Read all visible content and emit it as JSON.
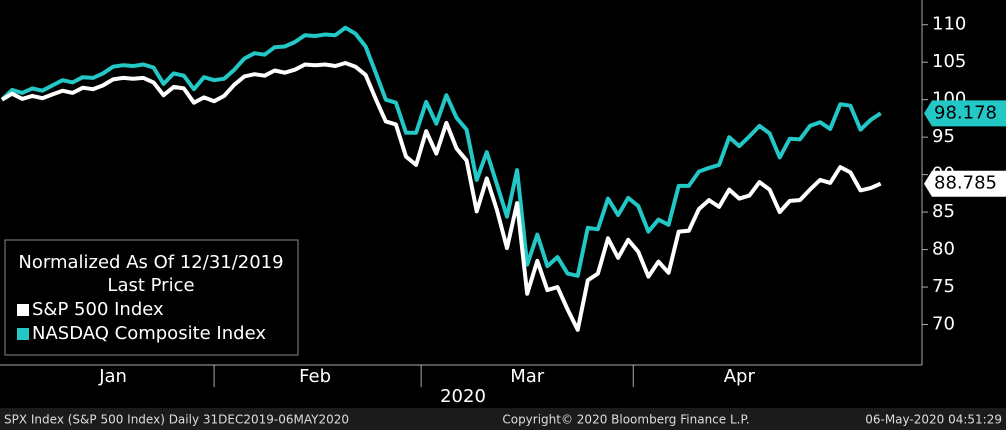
{
  "chart_data": {
    "type": "line",
    "legend_title": "Normalized As Of 12/31/2019",
    "legend_subtitle": "Last Price",
    "xlabel": "2020",
    "categories": [
      null,
      null,
      null,
      null,
      null,
      null,
      null,
      null,
      null,
      null,
      null,
      "Jan",
      null,
      null,
      null,
      null,
      null,
      null,
      null,
      null,
      null,
      null,
      null,
      null,
      null,
      null,
      null,
      null,
      null,
      null,
      null,
      "Feb",
      null,
      null,
      null,
      null,
      null,
      null,
      null,
      null,
      null,
      null,
      null,
      null,
      null,
      null,
      null,
      null,
      null,
      null,
      null,
      null,
      "Mar",
      null,
      null,
      null,
      null,
      null,
      null,
      null,
      null,
      null,
      null,
      null,
      null,
      null,
      null,
      null,
      null,
      null,
      null,
      null,
      null,
      "Apr",
      null,
      null,
      null,
      null,
      null,
      null,
      null,
      null,
      null,
      null,
      null,
      null,
      null,
      null
    ],
    "series": [
      {
        "name": "S&P 500 Index",
        "color": "#ffffff",
        "values": [
          100,
          100.8,
          100.1,
          100.5,
          100.2,
          100.7,
          101.2,
          100.9,
          101.6,
          101.4,
          101.9,
          102.7,
          102.9,
          102.8,
          102.9,
          102.3,
          100.6,
          101.7,
          101.5,
          99.6,
          100.3,
          99.8,
          100.5,
          102.0,
          103.1,
          103.4,
          103.2,
          103.9,
          103.6,
          104.0,
          104.7,
          104.6,
          104.7,
          104.5,
          104.9,
          104.4,
          103.3,
          100.1,
          97.1,
          96.7,
          92.4,
          91.3,
          95.8,
          92.8,
          96.9,
          93.5,
          91.9,
          85.1,
          89.5,
          85.3,
          80.2,
          86.2,
          74.1,
          78.5,
          74.6,
          75.0,
          72.0,
          69.3,
          75.9,
          76.8,
          81.5,
          78.9,
          81.3,
          79.7,
          76.4,
          78.4,
          76.9,
          82.4,
          82.5,
          85.4,
          86.6,
          85.7,
          88.0,
          86.8,
          87.2,
          89.0,
          88.0,
          85.0,
          86.5,
          86.6,
          88.0,
          89.3,
          88.9,
          91.0,
          90.3,
          87.9,
          88.2,
          88.785
        ]
      },
      {
        "name": "NASDAQ Composite Index",
        "color": "#22c7c6",
        "values": [
          100,
          101.3,
          100.9,
          101.5,
          101.2,
          101.9,
          102.6,
          102.3,
          103.0,
          102.9,
          103.5,
          104.4,
          104.6,
          104.5,
          104.7,
          104.3,
          102.1,
          103.5,
          103.2,
          101.4,
          103.0,
          102.6,
          102.8,
          104.0,
          105.5,
          106.2,
          106.0,
          107.0,
          107.1,
          107.7,
          108.6,
          108.5,
          108.7,
          108.6,
          109.6,
          108.8,
          107.1,
          103.6,
          100.0,
          99.6,
          95.6,
          95.6,
          99.7,
          96.8,
          100.6,
          97.6,
          96.0,
          89.3,
          93.0,
          88.7,
          84.4,
          90.6,
          78.0,
          82.0,
          77.8,
          79.0,
          76.8,
          76.5,
          82.9,
          82.7,
          86.8,
          84.6,
          86.9,
          85.8,
          82.4,
          84.0,
          83.3,
          88.5,
          88.5,
          90.4,
          90.9,
          91.3,
          95.0,
          93.8,
          95.1,
          96.5,
          95.5,
          92.3,
          94.8,
          94.7,
          96.5,
          97.0,
          96.1,
          99.4,
          99.2,
          96.0,
          97.3,
          98.178
        ]
      }
    ],
    "ylim": [
      64.6,
      113.3
    ],
    "yticks": [
      70,
      75,
      80,
      85,
      90,
      95,
      100,
      105,
      110
    ],
    "grid": false,
    "legend_position": "lower left",
    "footer": {
      "left": "SPX Index (S&P 500 Index)  Daily 31DEC2019-06MAY2020",
      "center": "Copyright© 2020 Bloomberg Finance L.P.",
      "right": "06-May-2020 04:51:29"
    }
  }
}
